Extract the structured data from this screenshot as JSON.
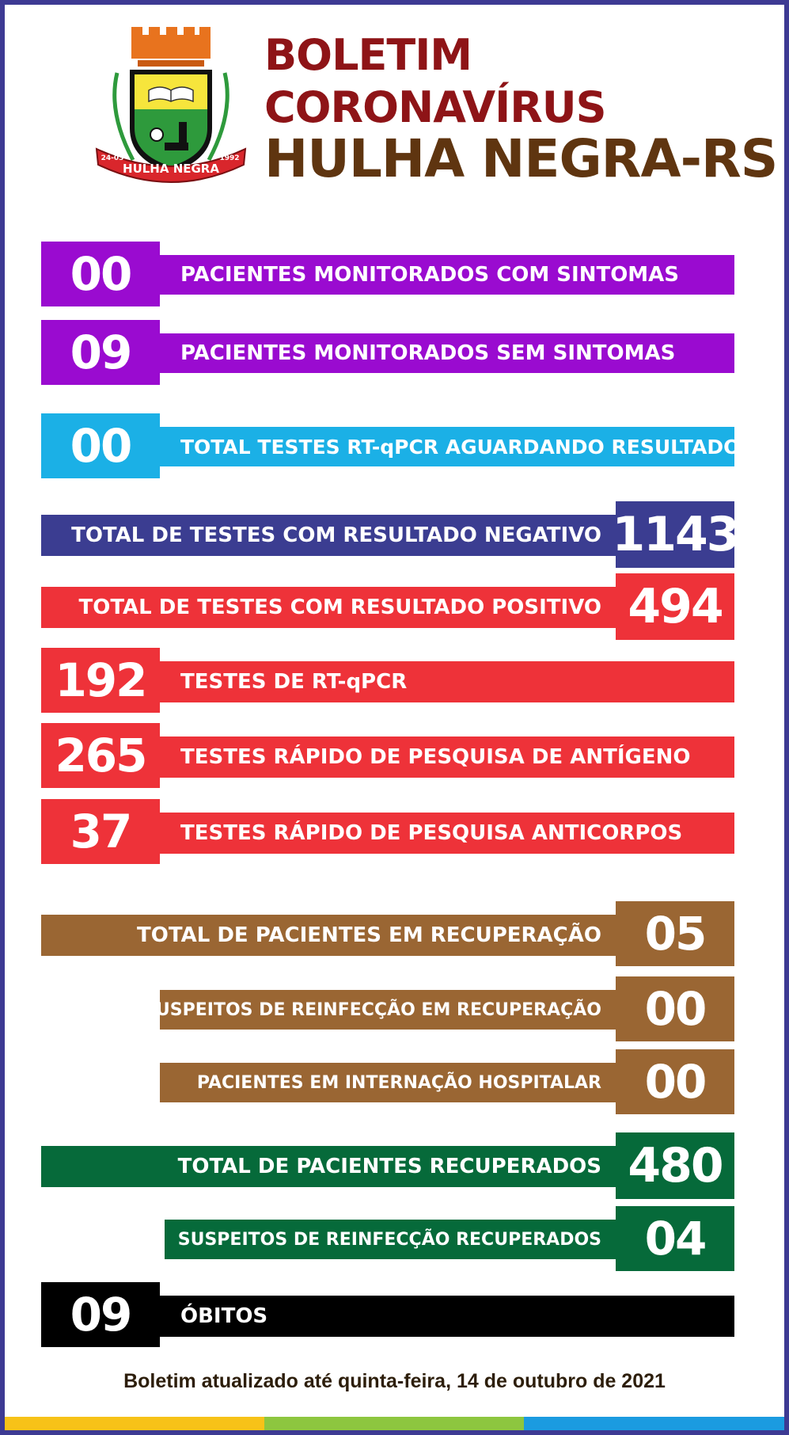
{
  "header": {
    "line1": "BOLETIM",
    "line2": "CORONAVÍRUS",
    "line3": "HULHA NEGRA-RS",
    "crest": {
      "banner_text": "HULHA NEGRA",
      "left_date": "24-03",
      "right_year": "1992"
    }
  },
  "rows": {
    "monitorados_com": {
      "value": "00",
      "label": "PACIENTES MONITORADOS COM SINTOMAS"
    },
    "monitorados_sem": {
      "value": "09",
      "label": "PACIENTES MONITORADOS SEM SINTOMAS"
    },
    "aguardando": {
      "value": "00",
      "label": "TOTAL TESTES RT-qPCR AGUARDANDO RESULTADOS"
    },
    "negativo": {
      "value": "1143",
      "label": "TOTAL DE TESTES COM RESULTADO NEGATIVO"
    },
    "positivo": {
      "value": "494",
      "label": "TOTAL DE TESTES COM RESULTADO POSITIVO"
    },
    "rtpcr": {
      "value": "192",
      "label": "TESTES DE RT-qPCR"
    },
    "antigeno": {
      "value": "265",
      "label": "TESTES RÁPIDO DE PESQUISA DE ANTÍGENO"
    },
    "anticorpos": {
      "value": "37",
      "label": "TESTES RÁPIDO DE PESQUISA ANTICORPOS"
    },
    "recuperacao": {
      "value": "05",
      "label": "TOTAL DE PACIENTES EM RECUPERAÇÃO"
    },
    "reinfeccao_recuperacao": {
      "value": "00",
      "label": "SUSPEITOS DE REINFECÇÃO EM RECUPERAÇÃO"
    },
    "internacao": {
      "value": "00",
      "label": "PACIENTES EM INTERNAÇÃO HOSPITALAR"
    },
    "recuperados": {
      "value": "480",
      "label": "TOTAL DE PACIENTES RECUPERADOS"
    },
    "reinfeccao_recuperados": {
      "value": "04",
      "label": "SUSPEITOS DE REINFECÇÃO RECUPERADOS"
    },
    "obitos": {
      "value": "09",
      "label": "ÓBITOS"
    }
  },
  "footer": {
    "text": "Boletim atualizado até quinta-feira, 14 de outubro de 2021"
  },
  "colors": {
    "frame": "#3d3a93",
    "purple": "#9a0bd0",
    "cyan": "#1bb0e6",
    "navy": "#3b3d91",
    "red": "#ee3239",
    "brown": "#9a6633",
    "green": "#066a3a",
    "black": "#000000",
    "title_red": "#8e1417",
    "title_brown": "#5f3510",
    "stripe_yellow": "#f7c218",
    "stripe_green": "#8dc63f",
    "stripe_blue": "#1b9be0"
  }
}
